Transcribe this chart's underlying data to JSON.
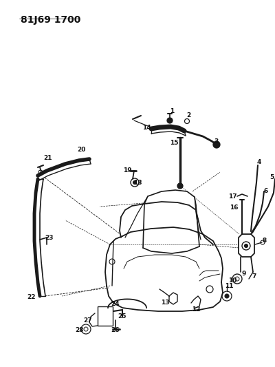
{
  "title": "81J69 1700",
  "bg_color": "#ffffff",
  "line_color": "#1a1a1a",
  "title_fontsize": 10,
  "label_fontsize": 6.5,
  "fig_width": 4.0,
  "fig_height": 5.33,
  "dpi": 100
}
